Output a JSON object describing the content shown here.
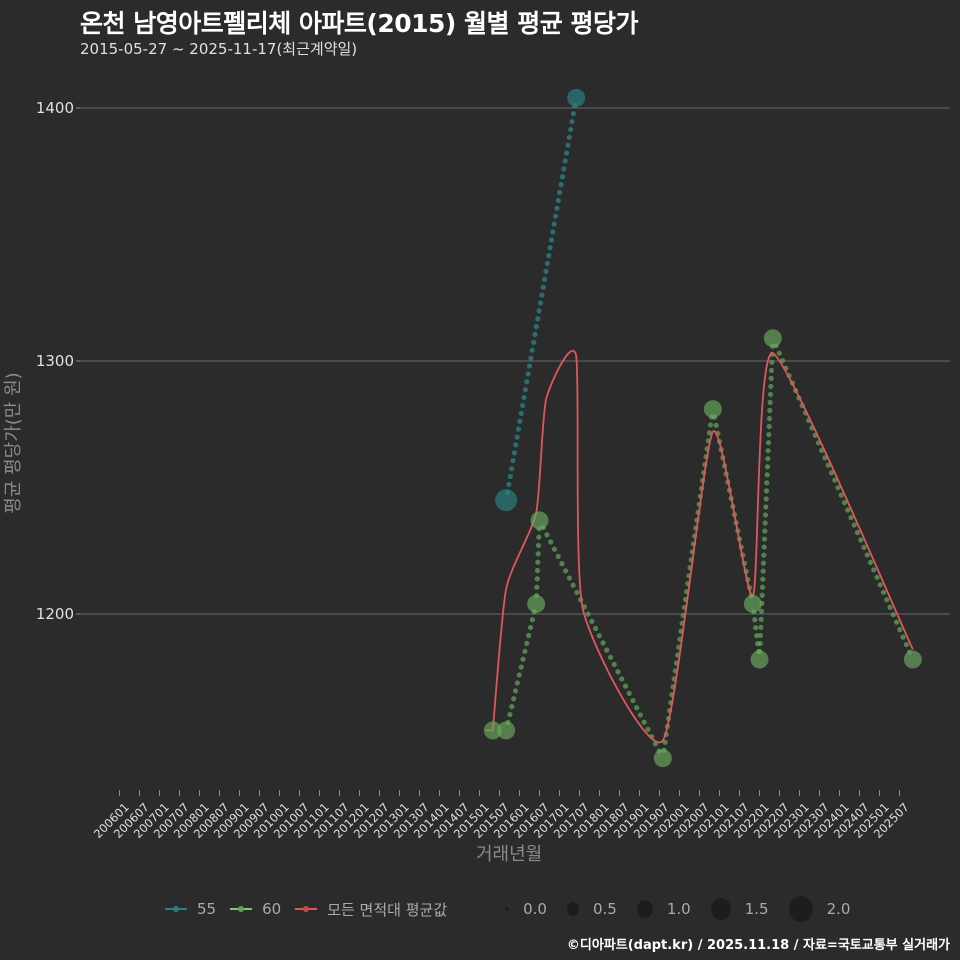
{
  "header": {
    "title": "온천 남영아트펠리체 아파트(2015) 월별 평균 평당가",
    "subtitle": "2015-05-27 ~ 2025-11-17(최근계약일)"
  },
  "axes": {
    "ylabel": "평균 평당가(만 원)",
    "xlabel": "거래년월",
    "yticks": [
      "1400",
      "1300",
      "1200"
    ]
  },
  "legend": {
    "series": [
      {
        "label": "55",
        "color": "#2a7f7f"
      },
      {
        "label": "60",
        "color": "#7cc96e"
      },
      {
        "label": "모든 면적대 평균값",
        "color": "#e0575b"
      }
    ],
    "sizes": [
      "0.0",
      "0.5",
      "1.0",
      "1.5",
      "2.0"
    ]
  },
  "caption": "©디아파트(dapt.kr) / 2025.11.18 / 자료=국토교통부 실거래가",
  "chart_data": {
    "type": "line",
    "title": "온천 남영아트펠리체 아파트(2015) 월별 평균 평당가",
    "subtitle": "2015-05-27 ~ 2025-11-17(최근계약일)",
    "xlabel": "거래년월",
    "ylabel": "평균 평당가(만 원)",
    "ylim": [
      1135,
      1415
    ],
    "yticks": [
      1200,
      1300,
      1400
    ],
    "grid": "horizontal major",
    "legend_position": "bottom",
    "x_tick_labels": [
      "200601",
      "200607",
      "200701",
      "200707",
      "200801",
      "200807",
      "200901",
      "200907",
      "201001",
      "201007",
      "201101",
      "201107",
      "201201",
      "201207",
      "201301",
      "201307",
      "201401",
      "201407",
      "201501",
      "201507",
      "201601",
      "201607",
      "201701",
      "201707",
      "201801",
      "201807",
      "201901",
      "201907",
      "202001",
      "202007",
      "202101",
      "202107",
      "202201",
      "202207",
      "202301",
      "202307",
      "202401",
      "202407",
      "202501",
      "202507"
    ],
    "series": [
      {
        "name": "55",
        "color": "#2a7f7f",
        "points": [
          {
            "x": "201509",
            "y": 1245,
            "size": 1.5
          },
          {
            "x": "201706",
            "y": 1404,
            "size": 1.0
          }
        ]
      },
      {
        "name": "60",
        "color": "#7cc96e",
        "points": [
          {
            "x": "201505",
            "y": 1154,
            "size": 1.0
          },
          {
            "x": "201509",
            "y": 1154,
            "size": 1.0
          },
          {
            "x": "201606",
            "y": 1204,
            "size": 1.0
          },
          {
            "x": "201607",
            "y": 1237,
            "size": 1.0
          },
          {
            "x": "201908",
            "y": 1143,
            "size": 1.0
          },
          {
            "x": "202011",
            "y": 1281,
            "size": 1.0
          },
          {
            "x": "202111",
            "y": 1204,
            "size": 1.0
          },
          {
            "x": "202201",
            "y": 1182,
            "size": 1.0
          },
          {
            "x": "202205",
            "y": 1309,
            "size": 1.0
          },
          {
            "x": "202511",
            "y": 1182,
            "size": 1.0
          }
        ]
      },
      {
        "name": "모든 면적대 평균값",
        "color": "#e0575b",
        "points": [
          {
            "x": "201505",
            "y": 1154
          },
          {
            "x": "201509",
            "y": 1210
          },
          {
            "x": "201606",
            "y": 1240
          },
          {
            "x": "201609",
            "y": 1285
          },
          {
            "x": "201706",
            "y": 1302
          },
          {
            "x": "201708",
            "y": 1202
          },
          {
            "x": "201908",
            "y": 1150
          },
          {
            "x": "202011",
            "y": 1272
          },
          {
            "x": "202111",
            "y": 1207
          },
          {
            "x": "202205",
            "y": 1303
          },
          {
            "x": "202511",
            "y": 1186
          }
        ]
      }
    ]
  }
}
